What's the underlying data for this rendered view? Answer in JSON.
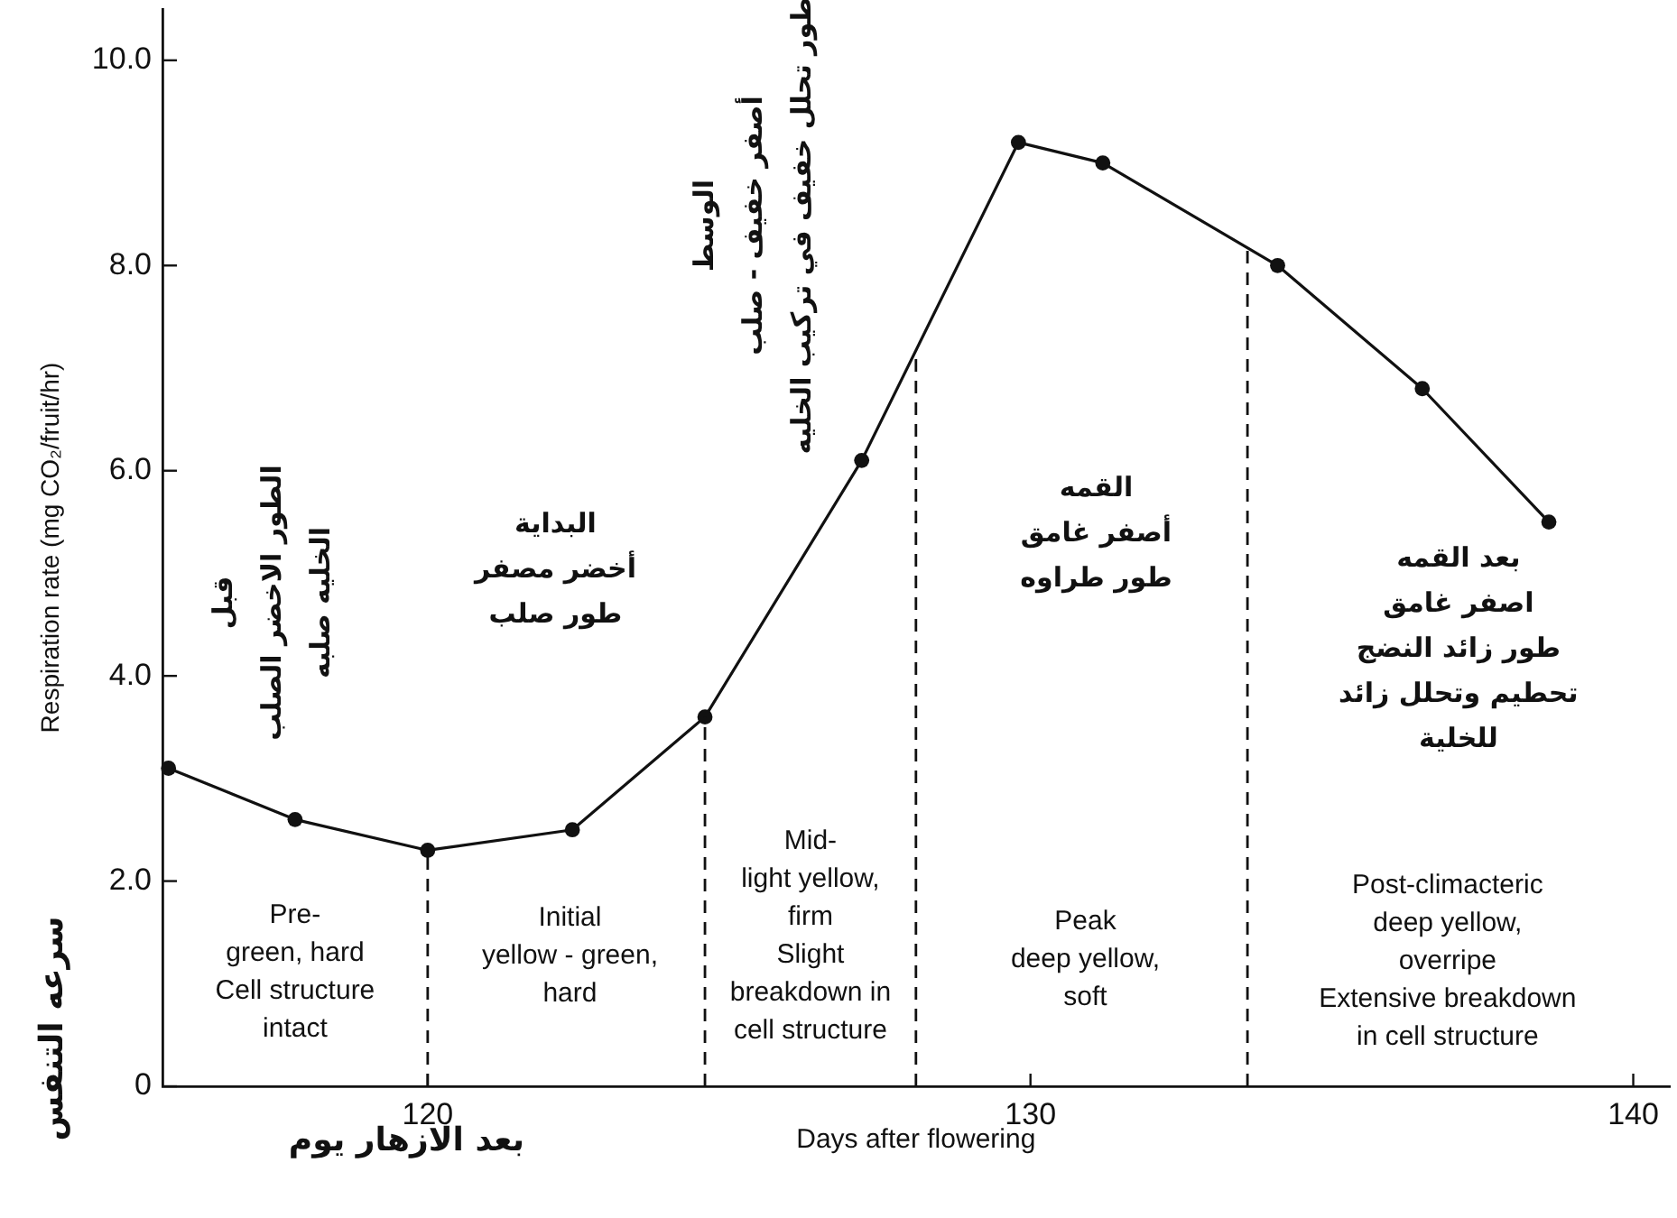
{
  "chart_data": {
    "type": "line",
    "xlabel": "Days after flowering",
    "ylabel": "Respiration rate (mg CO₂/fruit/hr)",
    "x": [
      115.7,
      117.8,
      120,
      122.4,
      124.6,
      127.2,
      129.8,
      131.2,
      134.1,
      136.5,
      138.6
    ],
    "values": [
      3.1,
      2.6,
      2.3,
      2.5,
      3.6,
      6.1,
      9.2,
      9.0,
      8.0,
      6.8,
      5.5
    ],
    "color": "#111111",
    "marker": "circle",
    "xlim": [
      115.6,
      140.6
    ],
    "xticks": [
      120,
      130,
      140
    ],
    "ylim": [
      0,
      10.5
    ],
    "yticks": [
      0,
      {
        "value": 2,
        "label": "2.0"
      },
      {
        "value": 4,
        "label": "4.0"
      },
      {
        "value": 6,
        "label": "6.0"
      },
      {
        "value": 8,
        "label": "8.0"
      },
      {
        "value": 10,
        "label": "10.0"
      }
    ],
    "ref_lines": [
      {
        "axis": "x",
        "value": 120,
        "line_style": "dashed"
      },
      {
        "axis": "x",
        "value": 124.6,
        "line_style": "dashed"
      },
      {
        "axis": "x",
        "value": 128.1,
        "line_style": "dashed"
      },
      {
        "axis": "x",
        "value": 133.6,
        "line_style": "dashed"
      }
    ],
    "annotations": [
      "سرعه التنفس",
      "بعد الازهار يوم",
      "Pre-\ngreen, hard\nCell structure\nintact",
      "قبل\nالطور الاخضر الصلب\nالخليه صلبه",
      "Initial\nyellow - green,\nhard",
      "البداية\nأخضر مصفر\nطور صلب",
      "Mid-\nlight yellow,\nfirm\nSlight\nbreakdown in\ncell structure",
      "الوسط\nأصفر خفيف - صلب\nطور تحلل خفيف في تركيب الخليه",
      "Peak\ndeep yellow,\nsoft",
      "القمه\nأصفر غامق\nطور طراوه",
      "Post-climacteric\ndeep yellow,\noverripe\nExtensive breakdown\nin cell structure",
      "بعد القمه\nاصفر غامق\nطور زائد النضج\nتحطيم وتحلل زائد\nللخلية"
    ]
  }
}
